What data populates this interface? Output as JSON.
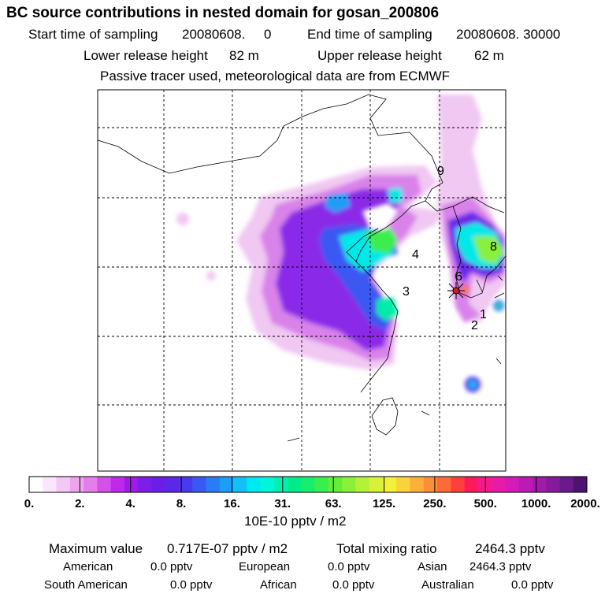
{
  "header": {
    "title": "BC  source contributions in nested domain for gosan_200806",
    "start_label": "Start time of sampling",
    "start_value": "20080608.     0",
    "end_label": "End time of sampling",
    "end_value": "20080608. 30000",
    "lower_label": "Lower release height",
    "lower_value": "82 m",
    "upper_label": "Upper release height",
    "upper_value": "62 m",
    "note": "Passive tracer used, meteorological data are from ECMWF"
  },
  "chart_data": {
    "type": "heatmap",
    "title": "BC  source contributions in nested domain for gosan_200806",
    "colorbar": {
      "tick_labels": [
        "0.",
        "2.",
        "4.",
        "8.",
        "16.",
        "31.",
        "63.",
        "125.",
        "250.",
        "500.",
        "1000.",
        "2000."
      ],
      "unit_label": "10E-10 pptv / m2",
      "colors": [
        "#ffffff",
        "#fbe6fb",
        "#f4c8f4",
        "#eda6ee",
        "#e47fe9",
        "#d451e8",
        "#bf2ae8",
        "#9f1ae8",
        "#7d1ee8",
        "#6a1ee8",
        "#5a28e6",
        "#4a3aee",
        "#3a58f2",
        "#2a7cf4",
        "#1a9ef6",
        "#10c0f6",
        "#00e8f0",
        "#00f6d8",
        "#00f0b0",
        "#00ec8a",
        "#18ee6a",
        "#3aee4e",
        "#62ee3a",
        "#8af03a",
        "#b4f23a",
        "#d8f23a",
        "#f4f03a",
        "#fad23a",
        "#fcb03a",
        "#fc8e3a",
        "#fc6a3a",
        "#fc403a",
        "#fc1a5a",
        "#f41a8a",
        "#e81aa8",
        "#d41ab8",
        "#bc1ab4",
        "#a21aaa",
        "#861a9c",
        "#6a1a8a",
        "#4c1470"
      ]
    },
    "markers": [
      "1",
      "2",
      "3",
      "4",
      "6",
      "8",
      "9"
    ],
    "stats": {
      "max_label": "Maximum value",
      "max_value": "0.717E-07 pptv / m2",
      "total_label": "Total mixing ratio",
      "total_value": "2464.3 pptv"
    },
    "sources": [
      {
        "name": "American",
        "value": "0.0 pptv"
      },
      {
        "name": "European",
        "value": "0.0 pptv"
      },
      {
        "name": "Asian",
        "value": "2464.3 pptv"
      },
      {
        "name": "South American",
        "value": "0.0 pptv"
      },
      {
        "name": "African",
        "value": "0.0 pptv"
      },
      {
        "name": "Australian",
        "value": "0.0 pptv"
      }
    ]
  }
}
